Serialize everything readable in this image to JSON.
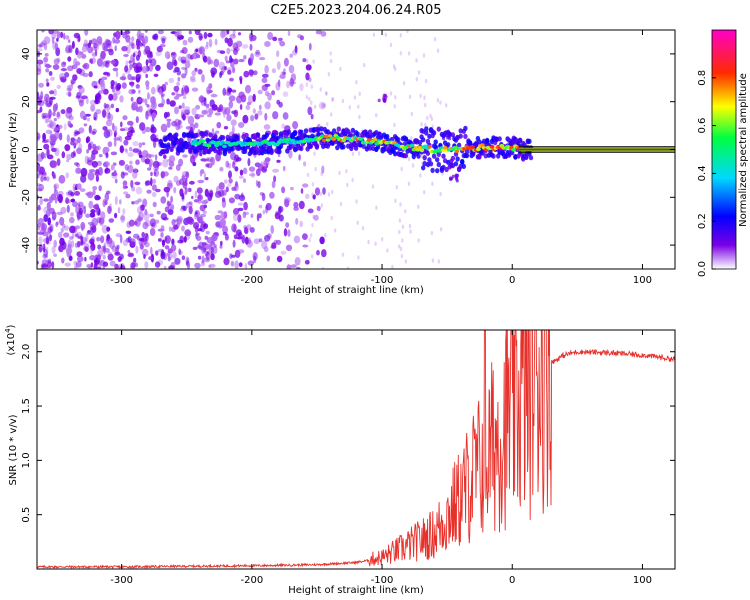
{
  "title": "C2E5.2023.204.06.24.R05",
  "chart_data": [
    {
      "type": "heatmap",
      "xlabel": "Height of straight line (km)",
      "ylabel": "Frequency (Hz)",
      "xlim": [
        -365,
        125
      ],
      "ylim": [
        -50,
        50
      ],
      "xticks": [
        -300,
        -200,
        -100,
        0,
        100
      ],
      "yticks": [
        -40,
        -20,
        0,
        20,
        40
      ],
      "colorbar": {
        "label": "Normalized spectral amplitude",
        "range": [
          0,
          1
        ],
        "ticks": [
          0.0,
          0.2,
          0.4,
          0.6,
          0.8
        ],
        "tick_labels": [
          "0.0",
          "0.2",
          "0.4",
          "0.6",
          "0.8"
        ],
        "colormap": "gist_rainbow (white → violet → blue → cyan → green → yellow → red → magenta)"
      },
      "features": {
        "noise_region_x": [
          -365,
          -160
        ],
        "signal_band_start_x": -270,
        "steady_line_start_x": 5,
        "steady_line_frequency": 0,
        "band_center_frequency": [
          [
            -265,
            2
          ],
          [
            -240,
            3
          ],
          [
            -220,
            2
          ],
          [
            -200,
            2
          ],
          [
            -180,
            3
          ],
          [
            -160,
            4
          ],
          [
            -140,
            5
          ],
          [
            -120,
            4
          ],
          [
            -100,
            3
          ],
          [
            -80,
            1
          ],
          [
            -60,
            0
          ],
          [
            -40,
            0
          ],
          [
            -20,
            1
          ],
          [
            0,
            1
          ],
          [
            5,
            0
          ]
        ],
        "side_blobs": [
          {
            "x": -100,
            "y": 21,
            "amplitude": 0.1
          },
          {
            "x": -50,
            "y": 6,
            "amplitude": 0.15
          },
          {
            "x": -45,
            "y": -12,
            "amplitude": 0.12
          }
        ]
      }
    },
    {
      "type": "line",
      "xlabel": "Height of straight line (km)",
      "ylabel": "SNR (10 * v/v)",
      "y_multiplier_label": "(x10⁴)",
      "xlim": [
        -365,
        125
      ],
      "ylim": [
        0,
        2.2
      ],
      "xticks": [
        -300,
        -200,
        -100,
        0,
        100
      ],
      "yticks": [
        0.5,
        1.0,
        1.5,
        2.0
      ],
      "ytick_labels": [
        "0.5",
        "1.0",
        "1.5",
        "2.0"
      ],
      "series": [
        {
          "color": "#e8302a",
          "trend": [
            [
              -365,
              0.02
            ],
            [
              -300,
              0.02
            ],
            [
              -250,
              0.025
            ],
            [
              -200,
              0.03
            ],
            [
              -150,
              0.04
            ],
            [
              -120,
              0.06
            ],
            [
              -100,
              0.1
            ],
            [
              -80,
              0.2
            ],
            [
              -60,
              0.3
            ],
            [
              -50,
              0.45
            ],
            [
              -40,
              0.6
            ],
            [
              -30,
              0.8
            ],
            [
              -20,
              0.95
            ],
            [
              -10,
              1.15
            ],
            [
              0,
              1.35
            ],
            [
              10,
              1.5
            ],
            [
              20,
              1.75
            ],
            [
              30,
              1.9
            ],
            [
              40,
              1.97
            ],
            [
              50,
              2.0
            ],
            [
              75,
              1.99
            ],
            [
              100,
              1.97
            ],
            [
              125,
              1.93
            ]
          ],
          "spike": {
            "x": -21,
            "y": 2.2
          }
        }
      ]
    }
  ]
}
